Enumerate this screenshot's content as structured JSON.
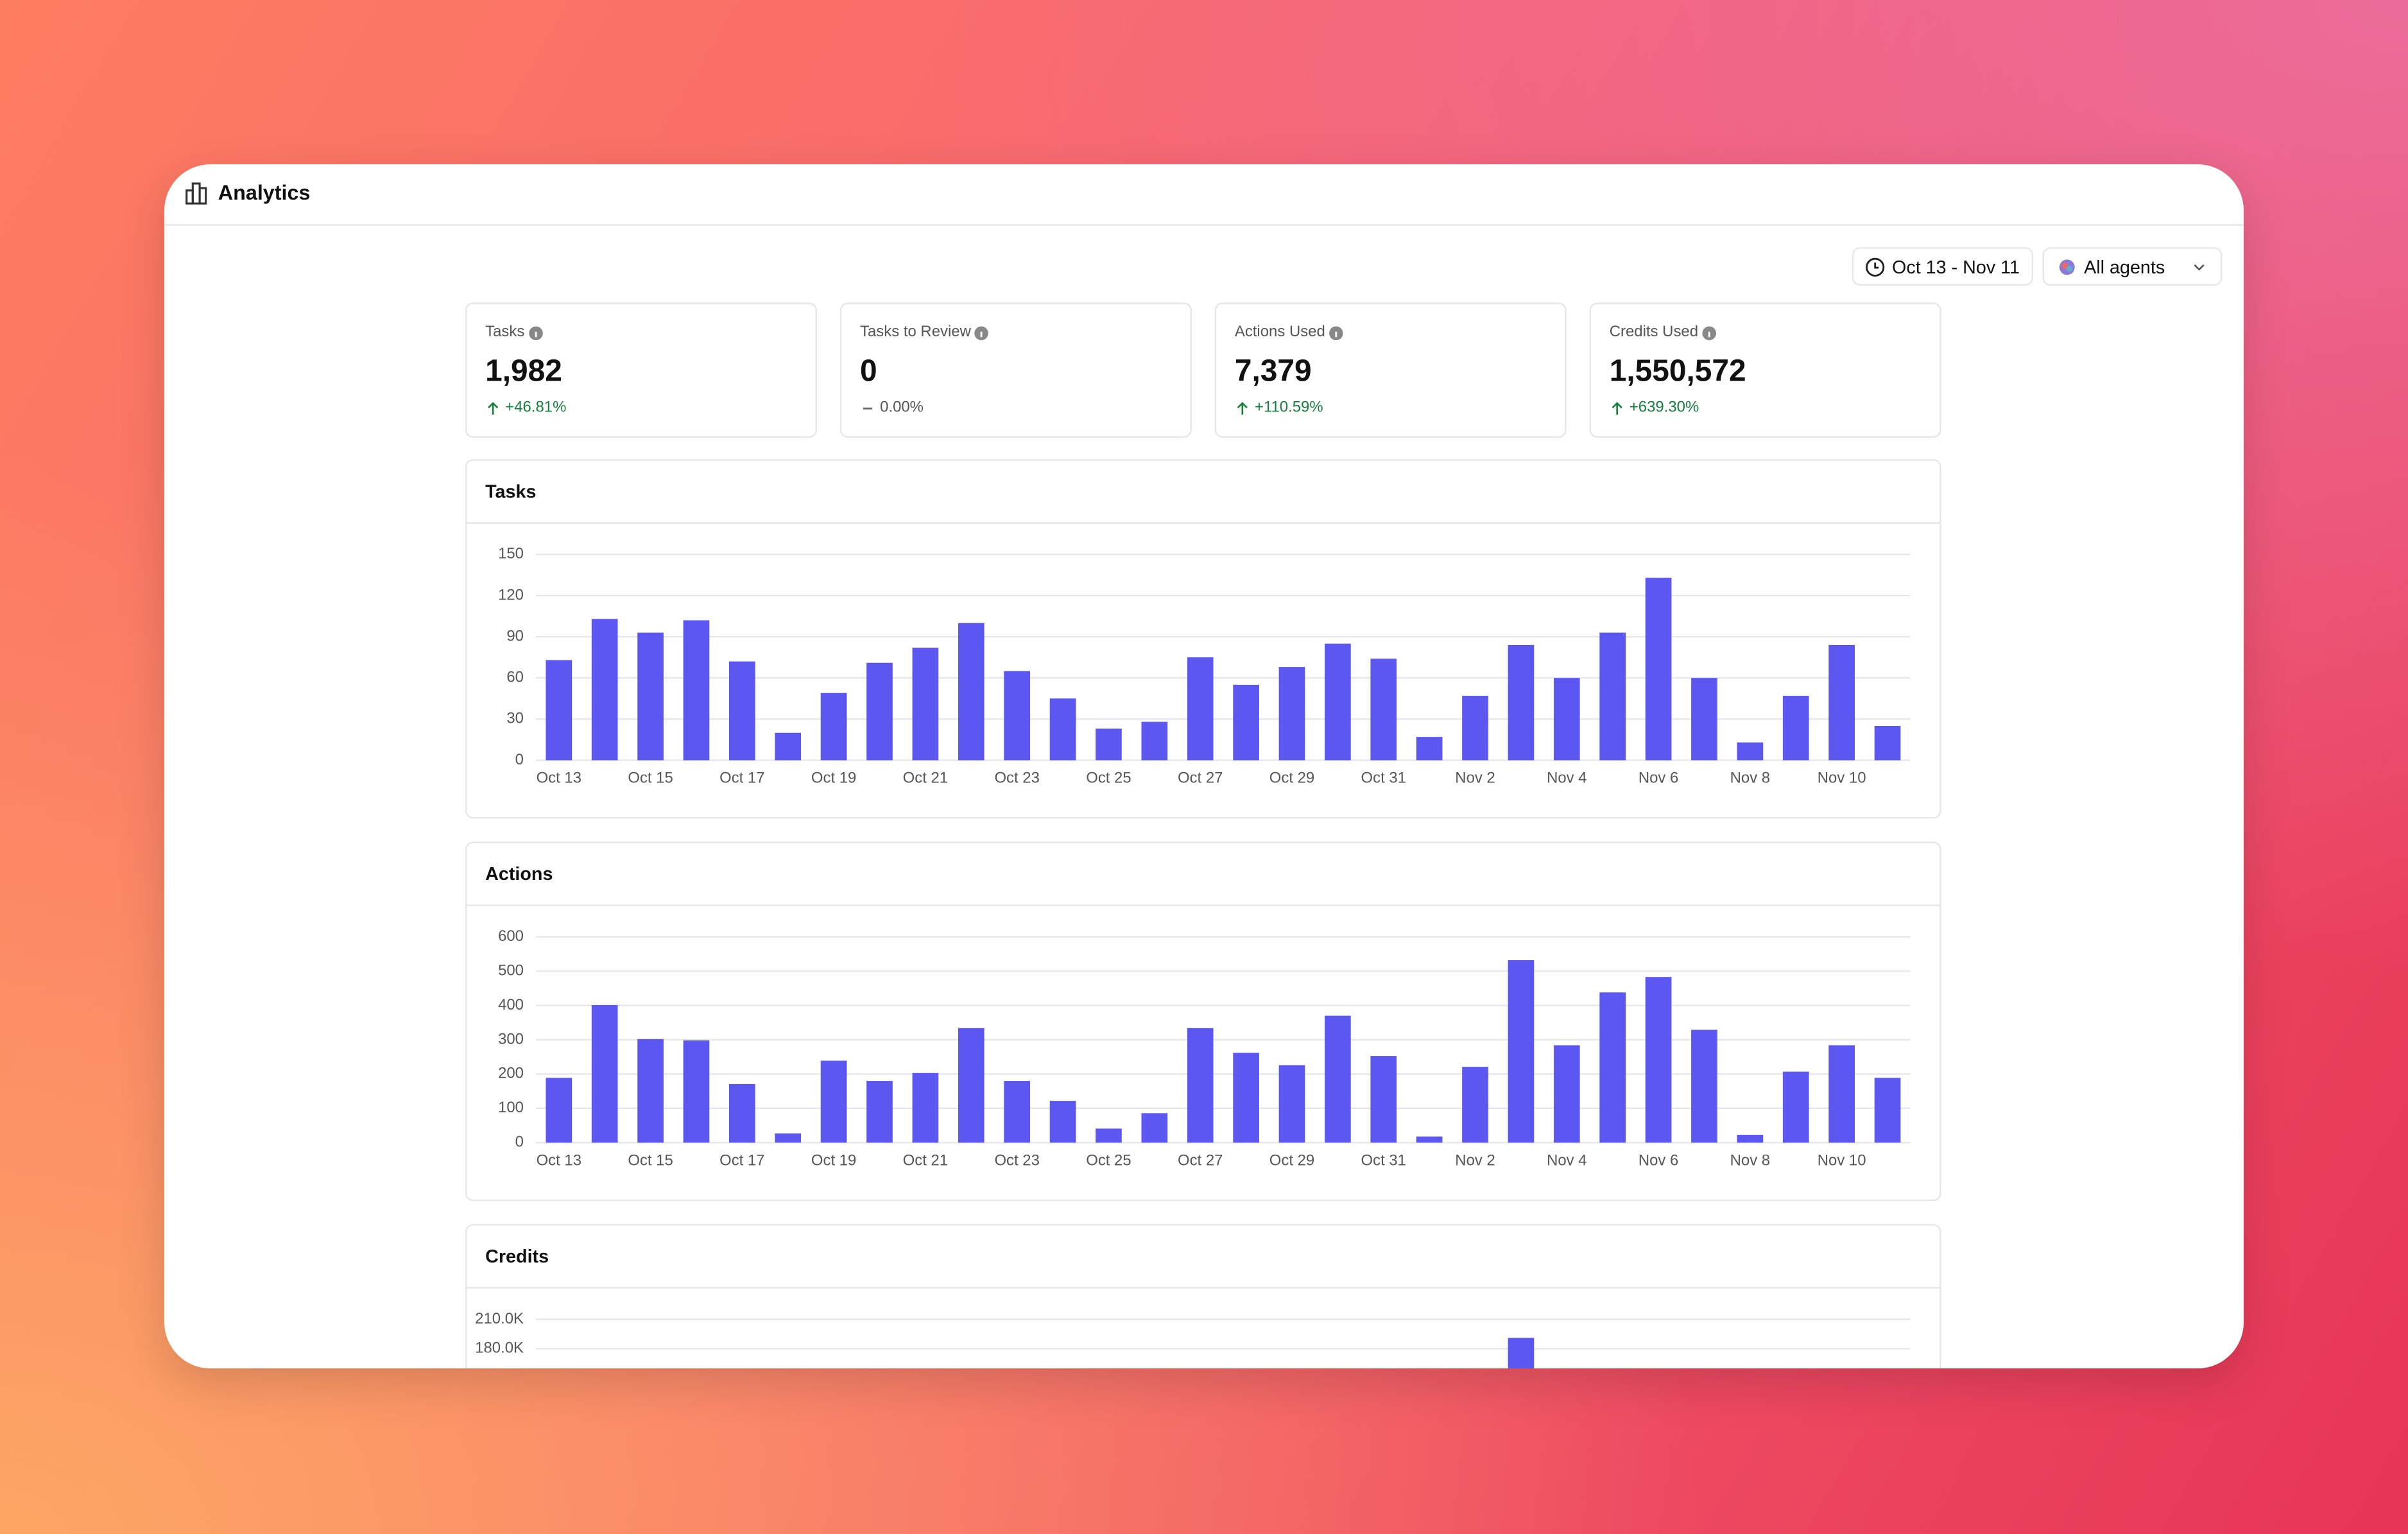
{
  "header": {
    "title": "Analytics"
  },
  "filters": {
    "date_range": "Oct 13 - Nov 11",
    "agent": "All agents"
  },
  "stats": [
    {
      "label": "Tasks",
      "value": "1,982",
      "change": "+46.81%"
    },
    {
      "label": "Tasks to Review",
      "value": "0",
      "change": "0.00%"
    },
    {
      "label": "Actions Used",
      "value": "7,379",
      "change": "+110.59%"
    },
    {
      "label": "Credits Used",
      "value": "1,550,572",
      "change": "+639.30%"
    }
  ],
  "chart_data": [
    {
      "type": "bar",
      "title": "Tasks",
      "color": "#5b57f0",
      "grid": true,
      "categories": [
        "Oct 13",
        null,
        "Oct 15",
        null,
        "Oct 17",
        null,
        "Oct 19",
        null,
        "Oct 21",
        null,
        "Oct 23",
        null,
        "Oct 25",
        null,
        "Oct 27",
        null,
        "Oct 29",
        null,
        "Oct 31",
        null,
        "Nov 2",
        null,
        "Nov 4",
        null,
        "Nov 6",
        null,
        "Nov 8",
        null,
        "Nov 10",
        null
      ],
      "values": [
        73,
        103,
        93,
        102,
        72,
        20,
        49,
        71,
        82,
        100,
        65,
        45,
        23,
        28,
        75,
        55,
        68,
        85,
        74,
        17,
        47,
        84,
        60,
        93,
        133,
        60,
        13,
        47,
        84,
        25
      ],
      "ylim": [
        0,
        150
      ],
      "yticks": [
        0,
        30,
        60,
        90,
        120,
        150
      ]
    },
    {
      "type": "bar",
      "title": "Actions",
      "color": "#5b57f0",
      "grid": true,
      "categories": [
        "Oct 13",
        null,
        "Oct 15",
        null,
        "Oct 17",
        null,
        "Oct 19",
        null,
        "Oct 21",
        null,
        "Oct 23",
        null,
        "Oct 25",
        null,
        "Oct 27",
        null,
        "Oct 29",
        null,
        "Oct 31",
        null,
        "Nov 2",
        null,
        "Nov 4",
        null,
        "Nov 6",
        null,
        "Nov 8",
        null,
        "Nov 10",
        null
      ],
      "values": [
        189,
        401,
        302,
        298,
        171,
        27,
        239,
        180,
        203,
        334,
        180,
        122,
        41,
        86,
        334,
        262,
        226,
        370,
        253,
        18,
        221,
        532,
        284,
        438,
        483,
        329,
        23,
        207,
        284,
        189
      ],
      "ylim": [
        0,
        600
      ],
      "yticks": [
        0,
        100,
        200,
        300,
        400,
        500,
        600
      ]
    },
    {
      "type": "bar",
      "title": "Credits",
      "color": "#5b57f0",
      "grid": true,
      "values": [
        null,
        null,
        null,
        null,
        null,
        null,
        null,
        null,
        null,
        null,
        null,
        null,
        null,
        null,
        null,
        null,
        null,
        null,
        null,
        null,
        null,
        191000,
        null,
        null,
        null,
        null,
        null,
        null,
        null,
        null
      ],
      "ylim": [
        0,
        210000
      ],
      "yticks": [
        {
          "value": 180000,
          "label": "180.0K"
        },
        {
          "value": 210000,
          "label": "210.0K"
        }
      ]
    }
  ]
}
